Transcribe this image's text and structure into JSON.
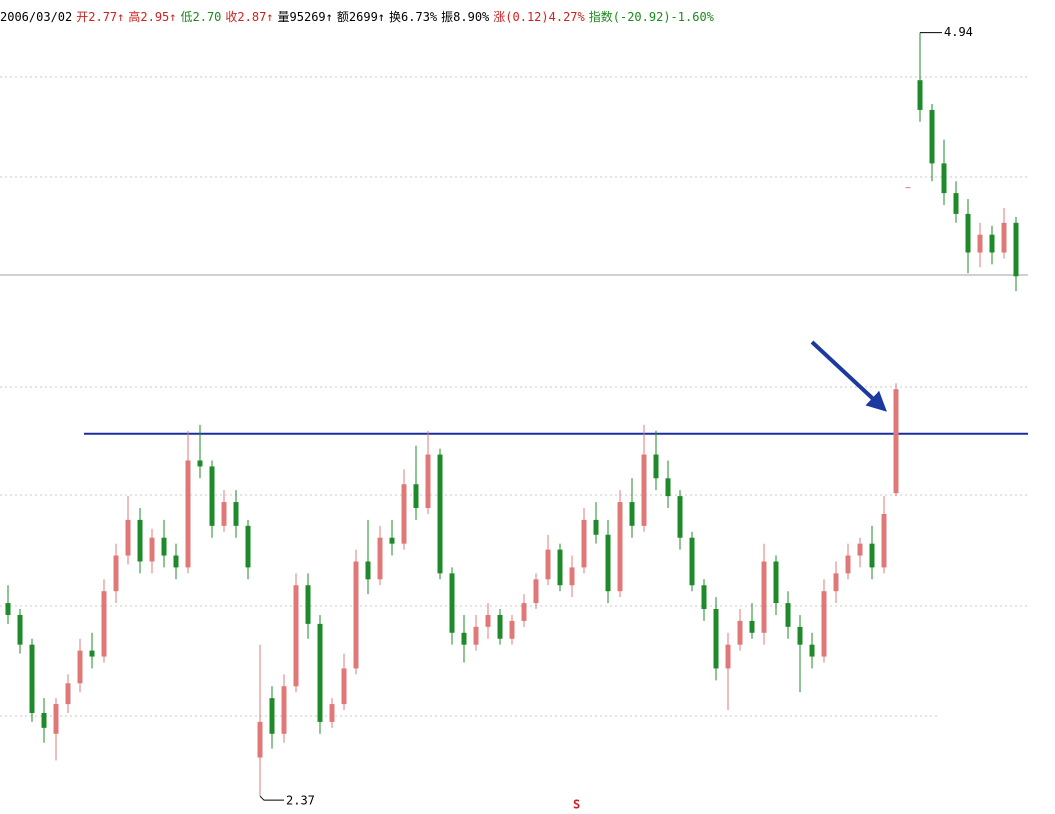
{
  "chart_data": {
    "type": "candlestick",
    "info_bar": [
      {
        "text": "2006/03/02",
        "color": "#000000"
      },
      {
        "text": "开2.77↑",
        "color": "#d02020"
      },
      {
        "text": "高2.95↑",
        "color": "#d02020"
      },
      {
        "text": "低2.70",
        "color": "#1a8a1a"
      },
      {
        "text": "收2.87↑",
        "color": "#d02020"
      },
      {
        "text": "量95269↑",
        "color": "#000000"
      },
      {
        "text": "额2699↑",
        "color": "#000000"
      },
      {
        "text": "换6.73%",
        "color": "#000000"
      },
      {
        "text": "振8.90%",
        "color": "#000000"
      },
      {
        "text": "涨(0.12)4.27%",
        "color": "#d02020"
      },
      {
        "text": "指数(-20.92)-1.60%",
        "color": "#1a8a1a"
      }
    ],
    "max_label": "4.94",
    "min_label": "2.37",
    "bottom_label": "S",
    "up_color": "#e07878",
    "down_color": "#1f8a2a",
    "resistance": 3.59,
    "resistance_color": "#1a2fa0",
    "ylim": [
      2.31,
      5.05
    ],
    "open": [
      3.02,
      2.98,
      2.88,
      2.65,
      2.58,
      2.68,
      2.75,
      2.86,
      2.84,
      3.06,
      3.18,
      3.3,
      3.16,
      3.24,
      3.18,
      3.14,
      3.5,
      3.48,
      3.28,
      3.36,
      3.28,
      2.5,
      2.7,
      2.58,
      2.74,
      3.08,
      2.95,
      2.62,
      2.68,
      2.8,
      3.16,
      3.1,
      3.24,
      3.22,
      3.42,
      3.34,
      3.52,
      3.12,
      2.92,
      2.88,
      2.94,
      2.98,
      2.9,
      2.96,
      3.02,
      3.1,
      3.2,
      3.08,
      3.14,
      3.3,
      3.25,
      3.06,
      3.36,
      3.28,
      3.52,
      3.44,
      3.38,
      3.24,
      3.08,
      3.0,
      2.8,
      2.88,
      2.96,
      2.92,
      3.16,
      3.02,
      2.94,
      2.88,
      2.84,
      3.06,
      3.12,
      3.18,
      3.22,
      3.14,
      3.39,
      4.42,
      4.78,
      4.68,
      4.5,
      4.4,
      4.33,
      4.2,
      4.26,
      4.2,
      4.3
    ],
    "high": [
      3.08,
      3.0,
      2.9,
      2.7,
      2.7,
      2.78,
      2.9,
      2.92,
      3.1,
      3.22,
      3.38,
      3.34,
      3.27,
      3.3,
      3.22,
      3.6,
      3.62,
      3.5,
      3.4,
      3.4,
      3.3,
      2.88,
      2.74,
      2.78,
      3.12,
      3.12,
      2.98,
      2.7,
      2.85,
      3.2,
      3.3,
      3.28,
      3.3,
      3.47,
      3.55,
      3.6,
      3.54,
      3.14,
      2.98,
      2.98,
      3.02,
      3.0,
      2.98,
      3.05,
      3.12,
      3.25,
      3.22,
      3.18,
      3.34,
      3.36,
      3.3,
      3.4,
      3.44,
      3.62,
      3.6,
      3.5,
      3.4,
      3.26,
      3.1,
      3.04,
      2.92,
      3.0,
      3.02,
      3.22,
      3.18,
      3.06,
      2.98,
      2.92,
      3.1,
      3.16,
      3.22,
      3.24,
      3.28,
      3.38,
      3.76,
      4.42,
      4.94,
      4.7,
      4.58,
      4.44,
      4.38,
      4.3,
      4.29,
      4.35,
      4.32
    ],
    "low": [
      2.95,
      2.85,
      2.62,
      2.55,
      2.49,
      2.65,
      2.72,
      2.8,
      2.82,
      3.02,
      3.15,
      3.12,
      3.12,
      3.14,
      3.1,
      3.12,
      3.44,
      3.24,
      3.26,
      3.24,
      3.1,
      2.37,
      2.53,
      2.55,
      2.72,
      2.9,
      2.58,
      2.6,
      2.66,
      2.78,
      3.05,
      3.08,
      3.18,
      3.2,
      3.3,
      3.32,
      3.1,
      2.88,
      2.82,
      2.86,
      2.9,
      2.88,
      2.88,
      2.94,
      3.0,
      3.08,
      3.06,
      3.04,
      3.12,
      3.22,
      3.02,
      3.04,
      3.24,
      3.26,
      3.4,
      3.34,
      3.2,
      3.06,
      2.96,
      2.76,
      2.66,
      2.86,
      2.9,
      2.88,
      2.98,
      2.9,
      2.72,
      2.8,
      2.82,
      3.02,
      3.1,
      3.14,
      3.1,
      3.12,
      3.38,
      4.42,
      4.64,
      4.44,
      4.36,
      4.3,
      4.13,
      4.15,
      4.16,
      4.18,
      4.07
    ],
    "close": [
      2.98,
      2.88,
      2.65,
      2.6,
      2.68,
      2.75,
      2.86,
      2.84,
      3.06,
      3.18,
      3.3,
      3.16,
      3.24,
      3.18,
      3.14,
      3.5,
      3.48,
      3.28,
      3.36,
      3.28,
      3.14,
      2.62,
      2.58,
      2.74,
      3.08,
      2.95,
      2.62,
      2.68,
      2.8,
      3.16,
      3.1,
      3.24,
      3.22,
      3.42,
      3.34,
      3.52,
      3.12,
      2.92,
      2.88,
      2.94,
      2.98,
      2.9,
      2.96,
      3.02,
      3.1,
      3.2,
      3.08,
      3.14,
      3.3,
      3.25,
      3.06,
      3.36,
      3.28,
      3.52,
      3.44,
      3.38,
      3.24,
      3.08,
      3.0,
      2.8,
      2.88,
      2.96,
      2.92,
      3.16,
      3.02,
      2.94,
      2.88,
      2.84,
      3.06,
      3.12,
      3.18,
      3.22,
      3.14,
      3.32,
      3.74,
      4.42,
      4.68,
      4.5,
      4.4,
      4.33,
      4.2,
      4.26,
      4.2,
      4.3,
      4.12
    ]
  }
}
